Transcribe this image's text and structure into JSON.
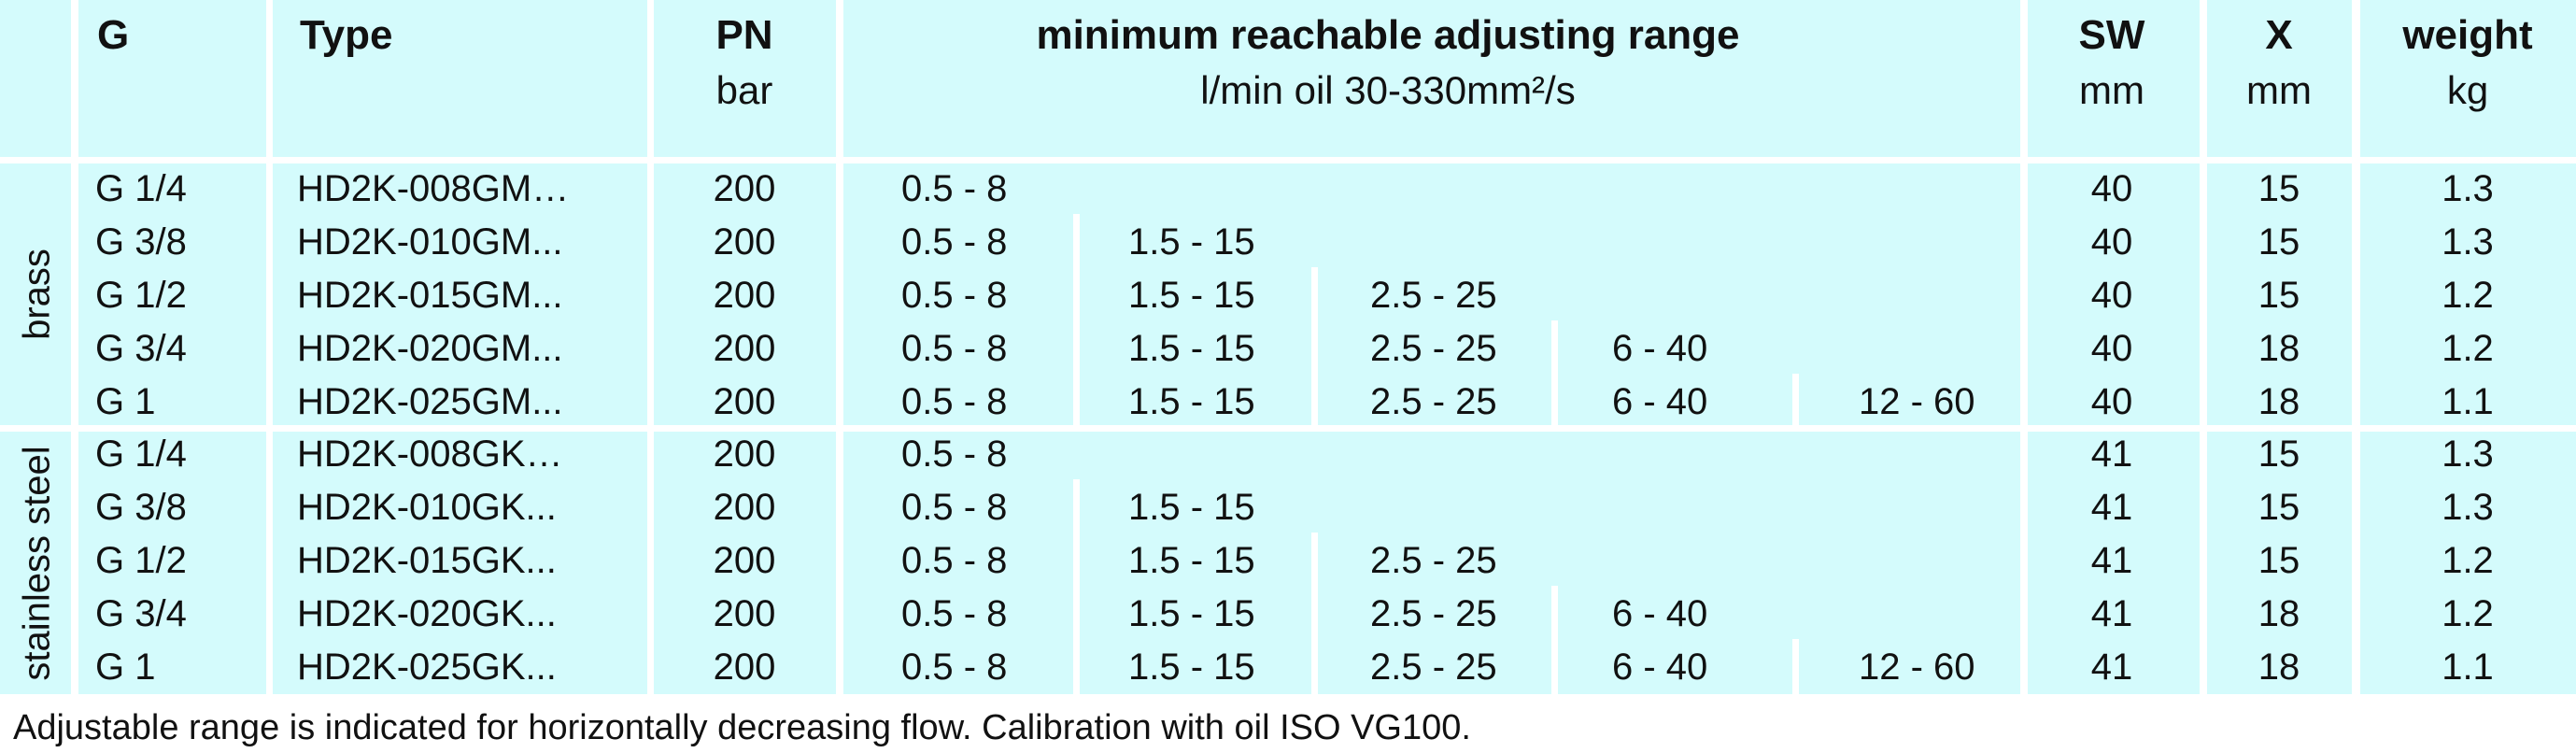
{
  "header": {
    "g": "G",
    "type": "Type",
    "pn": "PN",
    "pn_unit": "bar",
    "range": "minimum reachable adjusting range",
    "range_sub": "l/min oil 30-330mm²/s",
    "sw": "SW",
    "sw_unit": "mm",
    "x": "X",
    "x_unit": "mm",
    "weight": "weight",
    "weight_unit": "kg"
  },
  "groups": [
    {
      "label": "brass",
      "rows": [
        {
          "g": "G 1/4",
          "type": "HD2K-008GM…",
          "pn": "200",
          "ranges": [
            "0.5 - 8"
          ],
          "sw": "40",
          "x": "15",
          "weight": "1.3"
        },
        {
          "g": "G 3/8",
          "type": "HD2K-010GM...",
          "pn": "200",
          "ranges": [
            "0.5 - 8",
            "1.5 - 15"
          ],
          "sw": "40",
          "x": "15",
          "weight": "1.3"
        },
        {
          "g": "G 1/2",
          "type": "HD2K-015GM...",
          "pn": "200",
          "ranges": [
            "0.5 - 8",
            "1.5 - 15",
            "2.5 - 25"
          ],
          "sw": "40",
          "x": "15",
          "weight": "1.2"
        },
        {
          "g": "G 3/4",
          "type": "HD2K-020GM...",
          "pn": "200",
          "ranges": [
            "0.5 - 8",
            "1.5 - 15",
            "2.5 - 25",
            "6 - 40"
          ],
          "sw": "40",
          "x": "18",
          "weight": "1.2"
        },
        {
          "g": "G 1",
          "type": "HD2K-025GM...",
          "pn": "200",
          "ranges": [
            "0.5 - 8",
            "1.5 - 15",
            "2.5 - 25",
            "6 - 40",
            "12 - 60"
          ],
          "sw": "40",
          "x": "18",
          "weight": "1.1"
        }
      ]
    },
    {
      "label": "stainless steel",
      "rows": [
        {
          "g": "G 1/4",
          "type": "HD2K-008GK…",
          "pn": "200",
          "ranges": [
            "0.5 - 8"
          ],
          "sw": "41",
          "x": "15",
          "weight": "1.3"
        },
        {
          "g": "G 3/8",
          "type": "HD2K-010GK...",
          "pn": "200",
          "ranges": [
            "0.5 - 8",
            "1.5 - 15"
          ],
          "sw": "41",
          "x": "15",
          "weight": "1.3"
        },
        {
          "g": "G 1/2",
          "type": "HD2K-015GK...",
          "pn": "200",
          "ranges": [
            "0.5 - 8",
            "1.5 - 15",
            "2.5 - 25"
          ],
          "sw": "41",
          "x": "15",
          "weight": "1.2"
        },
        {
          "g": "G 3/4",
          "type": "HD2K-020GK...",
          "pn": "200",
          "ranges": [
            "0.5 - 8",
            "1.5 - 15",
            "2.5 - 25",
            "6 - 40"
          ],
          "sw": "41",
          "x": "18",
          "weight": "1.2"
        },
        {
          "g": "G 1",
          "type": "HD2K-025GK...",
          "pn": "200",
          "ranges": [
            "0.5 - 8",
            "1.5 - 15",
            "2.5 - 25",
            "6 - 40",
            "12 - 60"
          ],
          "sw": "41",
          "x": "18",
          "weight": "1.1"
        }
      ]
    }
  ],
  "footnote": "Adjustable range is indicated for horizontally decreasing flow. Calibration with oil ISO VG100."
}
